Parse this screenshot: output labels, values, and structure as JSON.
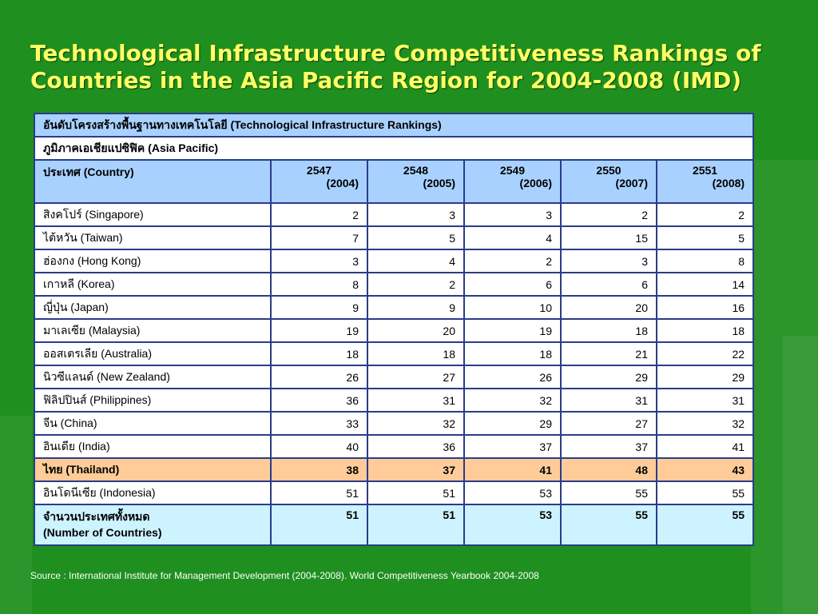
{
  "title_line1": "Technological Infrastructure Competitiveness Rankings of",
  "title_line2": "Countries in the Asia Pacific Region for 2004-2008 (IMD)",
  "table": {
    "header_th": "อันดับโครงสร้างพื้นฐานทางเทคโนโลยี (Technological Infrastructure Rankings)",
    "region": "ภูมิภาคเอเชียแปซิฟิค (Asia Pacific)",
    "country_col": "ประเทศ (Country)",
    "years": [
      {
        "be": "2547",
        "ce": "(2004)"
      },
      {
        "be": "2548",
        "ce": "(2005)"
      },
      {
        "be": "2549",
        "ce": "(2006)"
      },
      {
        "be": "2550",
        "ce": "(2007)"
      },
      {
        "be": "2551",
        "ce": "(2008)"
      }
    ],
    "rows": [
      {
        "country": "สิงคโปร์ (Singapore)",
        "values": [
          "2",
          "3",
          "3",
          "2",
          "2"
        ]
      },
      {
        "country": "ไต้หวัน (Taiwan)",
        "values": [
          "7",
          "5",
          "4",
          "15",
          "5"
        ]
      },
      {
        "country": "ฮ่องกง (Hong Kong)",
        "values": [
          "3",
          "4",
          "2",
          "3",
          "8"
        ]
      },
      {
        "country": "เกาหลี (Korea)",
        "values": [
          "8",
          "2",
          "6",
          "6",
          "14"
        ]
      },
      {
        "country": "ญี่ปุ่น (Japan)",
        "values": [
          "9",
          "9",
          "10",
          "20",
          "16"
        ]
      },
      {
        "country": "มาเลเซีย (Malaysia)",
        "values": [
          "19",
          "20",
          "19",
          "18",
          "18"
        ]
      },
      {
        "country": "ออสเตรเลีย (Australia)",
        "values": [
          "18",
          "18",
          "18",
          "21",
          "22"
        ]
      },
      {
        "country": "นิวซีแลนด์ (New Zealand)",
        "values": [
          "26",
          "27",
          "26",
          "29",
          "29"
        ]
      },
      {
        "country": "ฟิลิปปินส์ (Philippines)",
        "values": [
          "36",
          "31",
          "32",
          "31",
          "31"
        ]
      },
      {
        "country": "จีน (China)",
        "values": [
          "33",
          "32",
          "29",
          "27",
          "32"
        ]
      },
      {
        "country": "อินเดีย (India)",
        "values": [
          "40",
          "36",
          "37",
          "37",
          "41"
        ]
      },
      {
        "country": "ไทย (Thailand)",
        "values": [
          "38",
          "37",
          "41",
          "48",
          "43"
        ],
        "highlight": true
      },
      {
        "country": "อินโดนีเซีย (Indonesia)",
        "values": [
          "51",
          "51",
          "53",
          "55",
          "55"
        ]
      }
    ],
    "total_label_th": "จำนวนประเทศทั้งหมด",
    "total_label_en": "(Number of Countries)",
    "total_values": [
      "51",
      "51",
      "53",
      "55",
      "55"
    ]
  },
  "source": "Source : International Institute for Management Development (2004-2008). World Competitiveness Yearbook 2004-2008",
  "colors": {
    "background": "#1f8f1f",
    "title": "#ffff66",
    "header_blue": "#a9d1ff",
    "highlight_row": "#ffcc99",
    "total_row": "#ccf3ff",
    "border": "#2a3c8c"
  }
}
